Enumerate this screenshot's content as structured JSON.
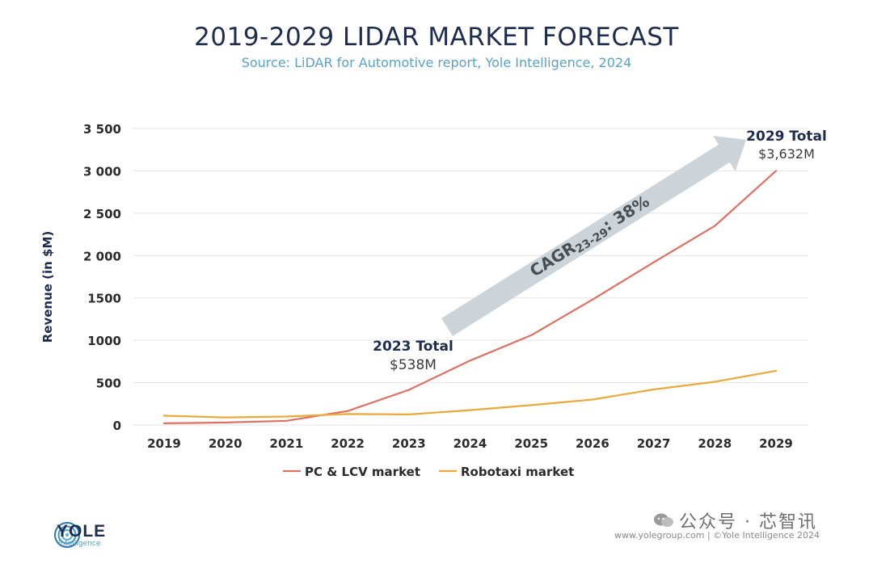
{
  "colors": {
    "title": "#1e2d4f",
    "subtitle": "#5aa2c9",
    "pc_line": "#e07062",
    "robotaxi_line": "#eaa93a",
    "arrow": "#ccd4d9",
    "grid": "#e3e3e3",
    "axis_text": "#2b2b2b"
  },
  "header": {
    "title": "2019-2029 LIDAR MARKET FORECAST",
    "subtitle": "Source: LiDAR for Automotive report, Yole Intelligence, 2024"
  },
  "chart_data": {
    "type": "line",
    "title": "2019-2029 LIDAR MARKET FORECAST",
    "subtitle": "Source: LiDAR for Automotive report, Yole Intelligence, 2024",
    "xlabel": "",
    "ylabel": "Revenue (in $M)",
    "ylim": [
      0,
      3500
    ],
    "yticks": [
      0,
      500,
      1000,
      1500,
      2000,
      2500,
      3000,
      3500
    ],
    "ytick_labels": [
      "0",
      "500",
      "1000",
      "1500",
      "2 000",
      "2 500",
      "3 000",
      "3 500"
    ],
    "categories": [
      "2019",
      "2020",
      "2021",
      "2022",
      "2023",
      "2024",
      "2025",
      "2026",
      "2027",
      "2028",
      "2029"
    ],
    "grid": true,
    "legend_position": "bottom",
    "series": [
      {
        "name": "PC & LCV market",
        "color": "#e07062",
        "values": [
          20,
          30,
          50,
          165,
          415,
          760,
          1060,
          1480,
          1920,
          2350,
          3000
        ]
      },
      {
        "name": "Robotaxi market",
        "color": "#eaa93a",
        "values": [
          110,
          90,
          100,
          130,
          125,
          175,
          235,
          300,
          420,
          510,
          640
        ]
      }
    ],
    "annotations": {
      "total_2023_label": "2023 Total",
      "total_2023_value": "$538M",
      "total_2029_label": "2029 Total",
      "total_2029_value": "$3,632M",
      "cagr_main": "CAGR",
      "cagr_sub": "23-29",
      "cagr_value": ": 38%"
    }
  },
  "branding": {
    "logo_text": "YOLE",
    "logo_sub": "Intelligence",
    "watermark": "公众号 · 芯智讯",
    "footer": "www.yolegroup.com | ©Yole Intelligence 2024"
  }
}
